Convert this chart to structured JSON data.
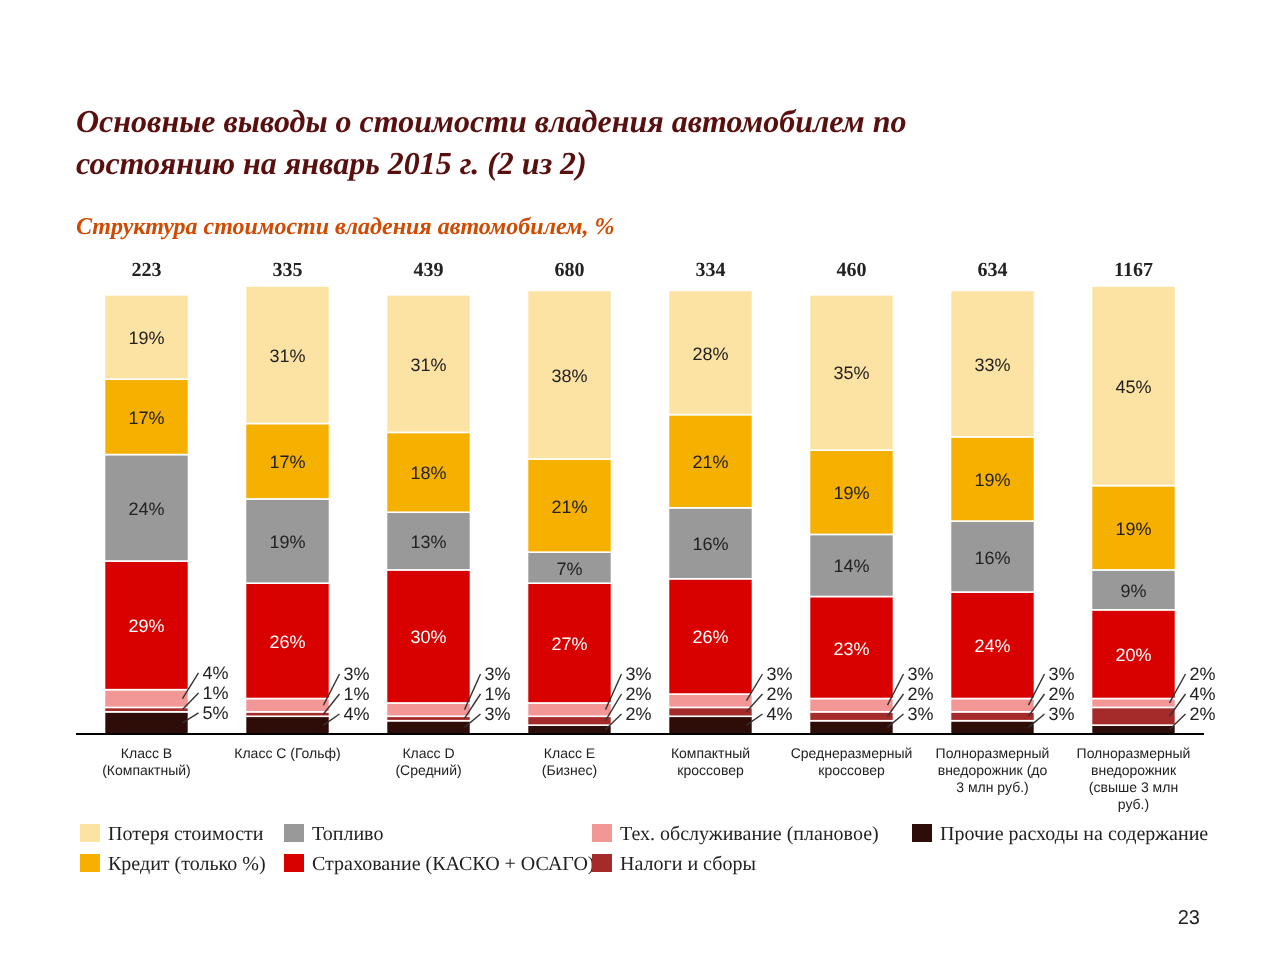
{
  "chart_data": {
    "type": "bar",
    "stacked": true,
    "legend": "bottom",
    "title": "Основные выводы о стоимости владения автомобилем по состоянию на январь 2015 г. (2 из 2)",
    "subtitle": "Структура стоимости владения автомобилем, %",
    "categories": [
      "Класс B (Компактный)",
      "Класс C (Гольф)",
      "Класс D (Средний)",
      "Класс E (Бизнес)",
      "Компактный кроссовер",
      "Среднеразмерный кроссовер",
      "Полноразмерный внедорожник (до 3 млн руб.)",
      "Полноразмерный внедорожник (свыше 3 млн руб.)"
    ],
    "series": [
      {
        "name": "Прочие расходы на содержание",
        "color": "#2e0c08",
        "values": [
          5,
          4,
          3,
          2,
          4,
          3,
          3,
          2
        ],
        "value_labels": [
          "5%",
          "4%",
          "3%",
          "2%",
          "4%",
          "3%",
          "3%",
          "2%"
        ]
      },
      {
        "name": "Налоги и сборы",
        "color": "#a52a2a",
        "values": [
          1,
          1,
          1,
          2,
          2,
          2,
          2,
          4
        ],
        "value_labels": [
          "1%",
          "1%",
          "1%",
          "2%",
          "2%",
          "2%",
          "2%",
          "4%"
        ]
      },
      {
        "name": "Тех. обслуживание (плановое)",
        "color": "#f29696",
        "values": [
          4,
          3,
          3,
          3,
          3,
          3,
          3,
          2
        ],
        "value_labels": [
          "4%",
          "3%",
          "3%",
          "3%",
          "3%",
          "3%",
          "3%",
          "2%"
        ]
      },
      {
        "name": "Страхование (КАСКО + ОСАГО)",
        "color": "#d90000",
        "values": [
          29,
          26,
          30,
          27,
          26,
          23,
          24,
          20
        ],
        "value_labels": [
          "29%",
          "26%",
          "30%",
          "27%",
          "26%",
          "23%",
          "24%",
          "20%"
        ]
      },
      {
        "name": "Топливо",
        "color": "#999999",
        "values": [
          24,
          19,
          13,
          7,
          16,
          14,
          16,
          9
        ],
        "value_labels": [
          "24%",
          "19%",
          "13%",
          "7%",
          "16%",
          "14%",
          "16%",
          "9%"
        ]
      },
      {
        "name": "Кредит (только %)",
        "color": "#f5b000",
        "values": [
          17,
          17,
          18,
          21,
          21,
          19,
          19,
          19
        ],
        "value_labels": [
          "17%",
          "17%",
          "18%",
          "21%",
          "21%",
          "19%",
          "19%",
          "19%"
        ]
      },
      {
        "name": "Потеря стоимости",
        "color": "#fde3a3",
        "values": [
          19,
          31,
          31,
          38,
          28,
          35,
          33,
          45
        ],
        "value_labels": [
          "19%",
          "31%",
          "31%",
          "38%",
          "28%",
          "35%",
          "33%",
          "45%"
        ]
      }
    ],
    "annotations": [
      "223",
      "335",
      "439",
      "680",
      "334",
      "460",
      "634",
      "1167",
      "23"
    ]
  }
}
